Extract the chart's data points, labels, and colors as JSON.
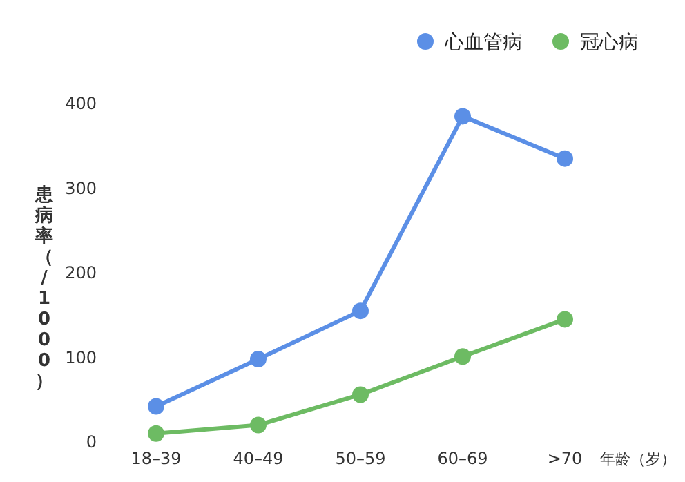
{
  "chart_data": {
    "type": "line",
    "categories": [
      "18–39",
      "40–49",
      "50–59",
      "60–69",
      ">70"
    ],
    "series": [
      {
        "name": "心血管病",
        "color": "#5b8fe6",
        "values": [
          42,
          98,
          155,
          385,
          335
        ]
      },
      {
        "name": "冠心病",
        "color": "#6dbb63",
        "values": [
          10,
          20,
          56,
          101,
          145
        ]
      }
    ],
    "ylim": [
      0,
      400
    ],
    "yticks": [
      0,
      100,
      200,
      300,
      400
    ],
    "ylabel": "患病率（/1000）",
    "xlabel": "年龄（岁）",
    "grid": false,
    "legend": "top right",
    "marker": "circle",
    "line_style": "solid"
  }
}
